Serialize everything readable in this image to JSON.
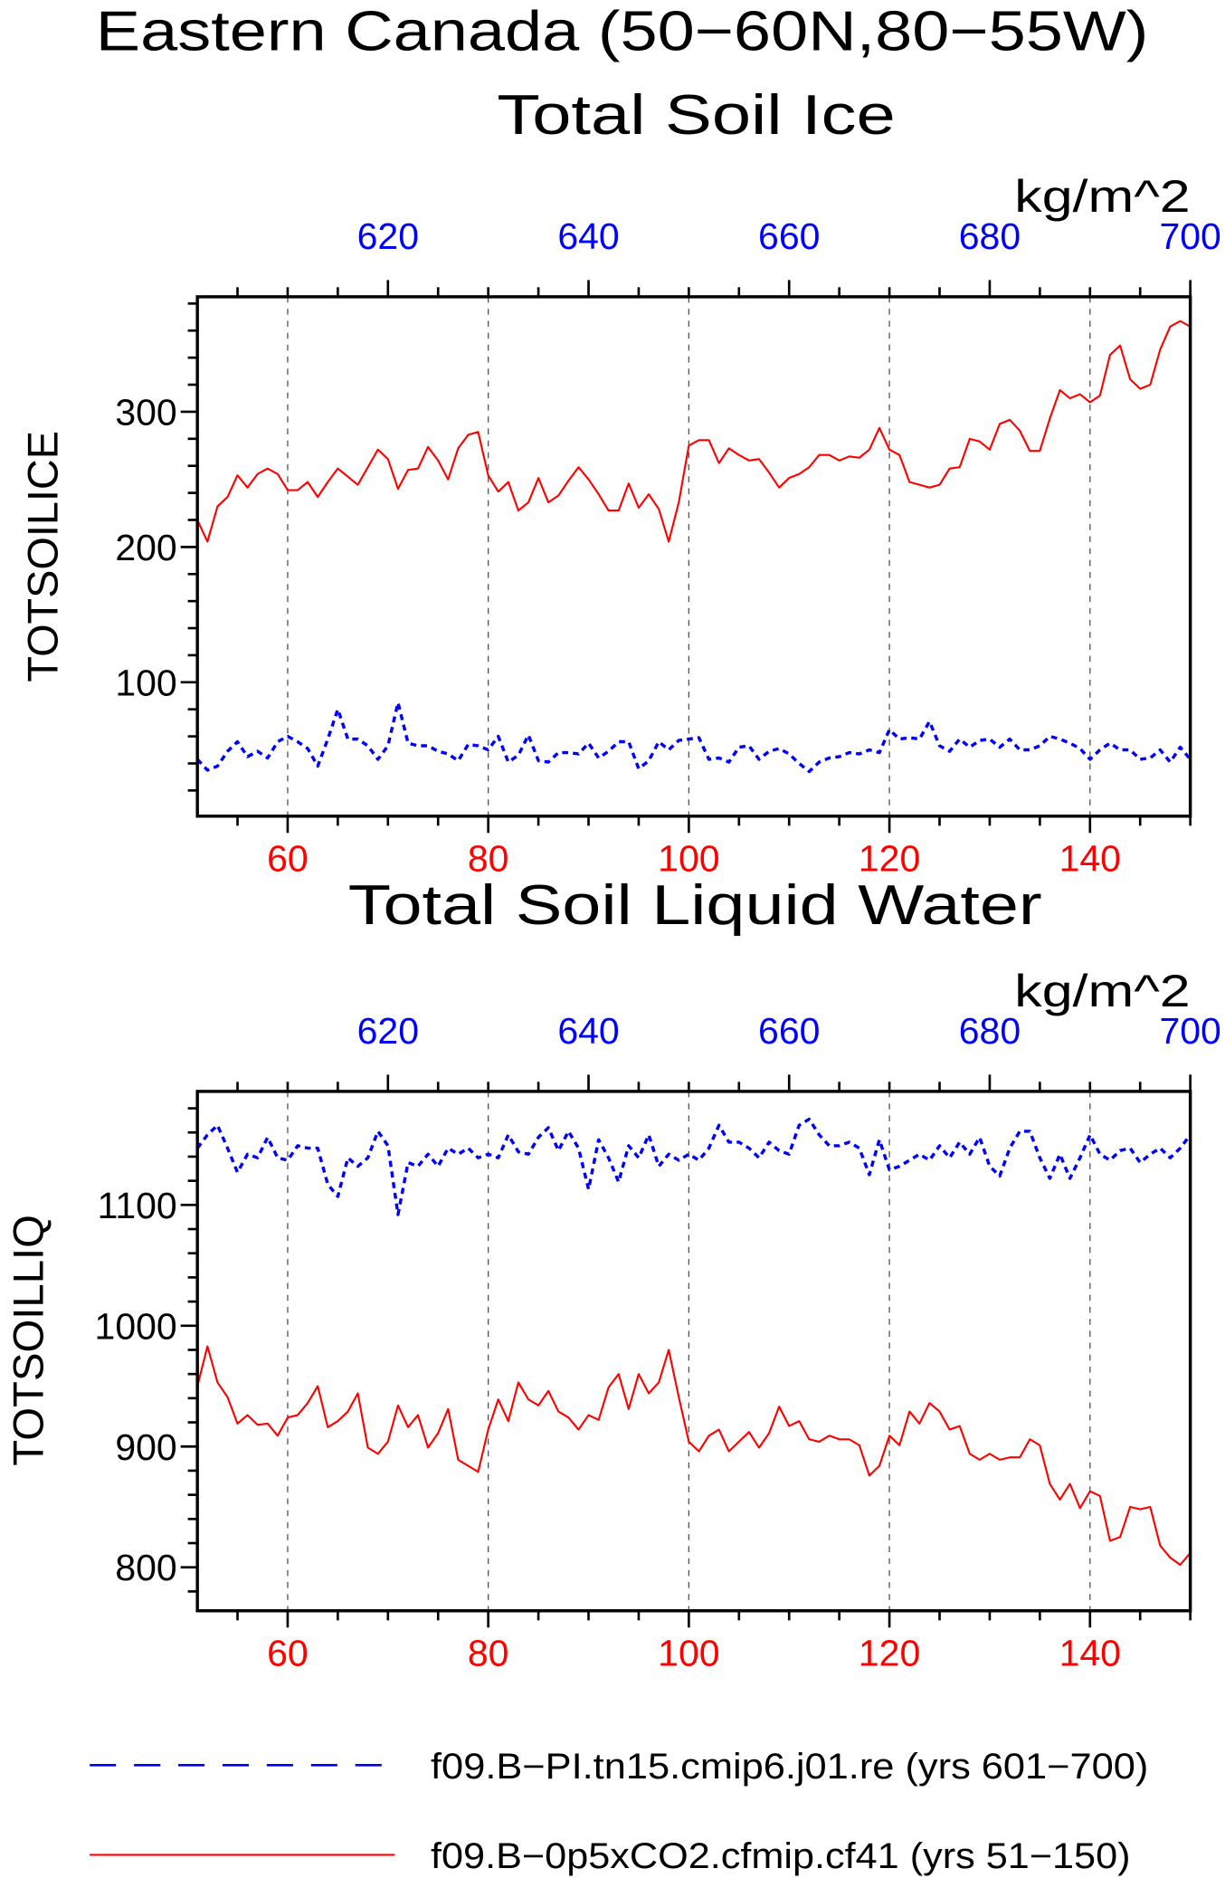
{
  "page": {
    "title": "Eastern Canada (50−60N,80−55W)"
  },
  "legend": {
    "placement": "bottom"
  },
  "chart_data": [
    {
      "type": "line",
      "title": "Total Soil Ice",
      "ylabel": "TOTSOILICE",
      "units": "kg/m^2",
      "ylim": [
        1,
        385
      ],
      "yticks": [
        100,
        200,
        300
      ],
      "grid": {
        "vertical": true,
        "horizontal": false
      },
      "x_bottom": {
        "range": [
          51,
          150
        ],
        "ticks": [
          60,
          80,
          100,
          120,
          140
        ],
        "color": "#ff0000"
      },
      "x_top": {
        "range": [
          601,
          700
        ],
        "ticks": [
          620,
          640,
          660,
          680,
          700
        ],
        "color": "#0000ff"
      },
      "series": [
        {
          "name": "f09.B−PI.tn15.cmip6.j01.re (yrs 601−700)",
          "axis": "top",
          "x_range": [
            601,
            700
          ],
          "color": "#0000ff",
          "style": "dashed",
          "values": [
            43,
            35,
            38,
            49,
            56,
            45,
            49,
            44,
            56,
            60,
            56,
            51,
            38,
            58,
            80,
            58,
            58,
            53,
            43,
            53,
            85,
            55,
            53,
            53,
            49,
            47,
            42,
            54,
            53,
            50,
            60,
            41,
            46,
            61,
            42,
            41,
            48,
            48,
            47,
            55,
            44,
            49,
            56,
            56,
            36,
            42,
            56,
            50,
            57,
            58,
            59,
            43,
            44,
            41,
            52,
            53,
            43,
            49,
            51,
            47,
            40,
            34,
            41,
            44,
            45,
            48,
            47,
            50,
            48,
            65,
            58,
            59,
            58,
            71,
            53,
            49,
            58,
            52,
            57,
            58,
            52,
            58,
            50,
            50,
            53,
            60,
            58,
            55,
            51,
            43,
            50,
            55,
            50,
            50,
            43,
            44,
            50,
            41,
            52,
            43
          ]
        },
        {
          "name": "f09.B−0p5xCO2.cfmip.cf41 (yrs 51−150)",
          "axis": "bottom",
          "x_range": [
            51,
            150
          ],
          "color": "#ff0000",
          "style": "solid",
          "values": [
            220,
            204,
            230,
            237,
            253,
            244,
            254,
            258,
            254,
            242,
            242,
            248,
            237,
            248,
            258,
            252,
            246,
            259,
            272,
            265,
            243,
            257,
            258,
            274,
            264,
            250,
            273,
            283,
            285,
            253,
            241,
            248,
            227,
            233,
            251,
            233,
            238,
            249,
            259,
            250,
            239,
            227,
            227,
            247,
            229,
            239,
            228,
            204,
            233,
            275,
            279,
            279,
            262,
            273,
            268,
            264,
            265,
            255,
            244,
            251,
            254,
            259,
            268,
            268,
            264,
            267,
            266,
            272,
            288,
            272,
            268,
            248,
            246,
            244,
            246,
            258,
            259,
            280,
            278,
            272,
            291,
            294,
            286,
            271,
            271,
            295,
            316,
            310,
            313,
            307,
            312,
            342,
            349,
            324,
            317,
            320,
            346,
            363,
            367,
            363
          ]
        }
      ]
    },
    {
      "type": "line",
      "title": "Total Soil Liquid Water",
      "ylabel": "TOTSOILLIQ",
      "units": "kg/m^2",
      "ylim": [
        764,
        1194
      ],
      "yticks": [
        800,
        900,
        1000,
        1100
      ],
      "grid": {
        "vertical": true,
        "horizontal": false
      },
      "x_bottom": {
        "range": [
          51,
          150
        ],
        "ticks": [
          60,
          80,
          100,
          120,
          140
        ],
        "color": "#ff0000"
      },
      "x_top": {
        "range": [
          601,
          700
        ],
        "ticks": [
          620,
          640,
          660,
          680,
          700
        ],
        "color": "#0000ff"
      },
      "series": [
        {
          "name": "f09.B−PI.tn15.cmip6.j01.re (yrs 601−700)",
          "axis": "top",
          "x_range": [
            601,
            700
          ],
          "color": "#0000ff",
          "style": "dashed",
          "values": [
            1147,
            1158,
            1166,
            1147,
            1127,
            1142,
            1139,
            1156,
            1139,
            1137,
            1149,
            1147,
            1147,
            1117,
            1107,
            1139,
            1132,
            1139,
            1161,
            1149,
            1092,
            1135,
            1132,
            1142,
            1132,
            1147,
            1142,
            1147,
            1139,
            1142,
            1139,
            1158,
            1144,
            1142,
            1156,
            1164,
            1145,
            1161,
            1147,
            1113,
            1154,
            1139,
            1119,
            1149,
            1139,
            1158,
            1132,
            1142,
            1137,
            1142,
            1137,
            1147,
            1166,
            1152,
            1152,
            1147,
            1139,
            1152,
            1145,
            1142,
            1166,
            1171,
            1158,
            1149,
            1149,
            1152,
            1147,
            1125,
            1154,
            1129,
            1132,
            1137,
            1142,
            1137,
            1149,
            1139,
            1152,
            1142,
            1156,
            1132,
            1124,
            1147,
            1161,
            1161,
            1139,
            1122,
            1142,
            1122,
            1139,
            1158,
            1142,
            1137,
            1145,
            1147,
            1135,
            1142,
            1147,
            1139,
            1147,
            1158
          ]
        },
        {
          "name": "f09.B−0p5xCO2.cfmip.cf41 (yrs 51−150)",
          "axis": "bottom",
          "x_range": [
            51,
            150
          ],
          "color": "#ff0000",
          "style": "solid",
          "values": [
            950,
            983,
            953,
            941,
            919,
            926,
            918,
            919,
            909,
            924,
            926,
            936,
            950,
            916,
            921,
            929,
            944,
            899,
            894,
            904,
            934,
            916,
            926,
            899,
            911,
            931,
            889,
            884,
            879,
            914,
            939,
            921,
            953,
            939,
            934,
            946,
            929,
            924,
            914,
            926,
            922,
            949,
            960,
            931,
            960,
            944,
            953,
            980,
            941,
            904,
            896,
            909,
            914,
            896,
            904,
            912,
            899,
            911,
            933,
            917,
            921,
            906,
            904,
            909,
            906,
            906,
            901,
            876,
            884,
            909,
            901,
            929,
            919,
            936,
            929,
            914,
            917,
            894,
            889,
            894,
            889,
            891,
            891,
            906,
            901,
            869,
            856,
            869,
            849,
            863,
            859,
            822,
            825,
            850,
            848,
            850,
            818,
            808,
            802,
            812
          ]
        }
      ]
    }
  ]
}
